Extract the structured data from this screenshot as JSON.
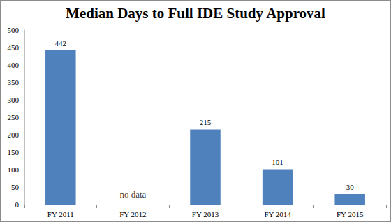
{
  "chart_data": {
    "type": "bar",
    "title": "Median Days to Full IDE Study Approval",
    "categories": [
      "FY 2011",
      "FY 2012",
      "FY 2013",
      "FY 2014",
      "FY 2015"
    ],
    "values": [
      442,
      null,
      215,
      101,
      30
    ],
    "color": "#4f81bd",
    "ylim": [
      0,
      500
    ],
    "yticks": [
      0,
      50,
      100,
      150,
      200,
      250,
      300,
      350,
      400,
      450,
      500
    ],
    "grid": false,
    "data_labels": true,
    "annotations": [
      {
        "category": "FY 2012",
        "text": "no data"
      }
    ]
  }
}
